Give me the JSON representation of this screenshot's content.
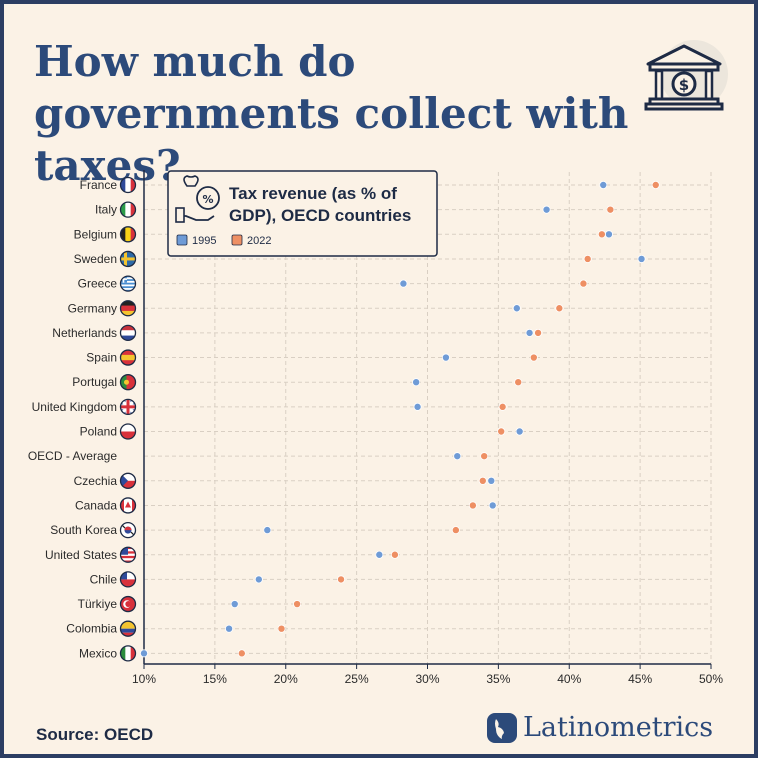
{
  "title": "How much do governments collect with taxes?",
  "source": "Source: OECD",
  "brand": "Latinometrics",
  "colors": {
    "series_1995": "#6f9bd6",
    "series_2022": "#ee8f63",
    "title": "#2c4a7a",
    "background": "#fbf2e6"
  },
  "icons": {
    "header": "bank-building-icon",
    "legend": "money-bag-percent-icon",
    "brand": "latinometrics-logo-icon"
  },
  "chart_data": {
    "type": "scatter",
    "subtype": "dumbbell-dot-plot",
    "title": "Tax revenue (as % of GDP), OECD countries",
    "x_unit": "%",
    "xlim": [
      10,
      50
    ],
    "xticks": [
      "10%",
      "15%",
      "20%",
      "25%",
      "30%",
      "35%",
      "40%",
      "45%",
      "50%"
    ],
    "grid": true,
    "legend_position": "top-left",
    "categories": [
      "France",
      "Italy",
      "Belgium",
      "Sweden",
      "Greece",
      "Germany",
      "Netherlands",
      "Spain",
      "Portugal",
      "United Kingdom",
      "Poland",
      "OECD - Average",
      "Czechia",
      "Canada",
      "South Korea",
      "United States",
      "Chile",
      "Türkiye",
      "Colombia",
      "Mexico"
    ],
    "series": [
      {
        "name": "1995",
        "values": [
          42.4,
          38.4,
          42.8,
          45.1,
          28.3,
          36.3,
          37.2,
          31.3,
          29.2,
          29.3,
          36.5,
          32.1,
          34.5,
          34.6,
          18.7,
          26.6,
          18.1,
          16.4,
          16.0,
          10.0
        ]
      },
      {
        "name": "2022",
        "values": [
          46.1,
          42.9,
          42.3,
          41.3,
          41.0,
          39.3,
          37.8,
          37.5,
          36.4,
          35.3,
          35.2,
          34.0,
          33.9,
          33.2,
          32.0,
          27.7,
          23.9,
          20.8,
          19.7,
          16.9
        ]
      }
    ],
    "flags": [
      {
        "type": "v",
        "colors": [
          "#2f4a9a",
          "#ffffff",
          "#d8313b"
        ]
      },
      {
        "type": "v",
        "colors": [
          "#2c9c49",
          "#ffffff",
          "#d8313b"
        ]
      },
      {
        "type": "v",
        "colors": [
          "#222222",
          "#f7d117",
          "#d8313b"
        ]
      },
      {
        "type": "cross",
        "colors": [
          "#2d6aa8",
          "#f4c430"
        ]
      },
      {
        "type": "stripes",
        "colors": [
          "#4b8ed0",
          "#ffffff"
        ]
      },
      {
        "type": "h",
        "colors": [
          "#222222",
          "#d8313b",
          "#f4c430"
        ]
      },
      {
        "type": "h",
        "colors": [
          "#c8323d",
          "#ffffff",
          "#2f4a9a"
        ]
      },
      {
        "type": "h",
        "colors": [
          "#d8313b",
          "#f4c430",
          "#d8313b"
        ]
      },
      {
        "type": "v2",
        "colors": [
          "#2c8c3d",
          "#d8313b"
        ]
      },
      {
        "type": "uk",
        "colors": [
          "#2f4a9a",
          "#ffffff",
          "#d8313b"
        ]
      },
      {
        "type": "h2",
        "colors": [
          "#ffffff",
          "#d8313b"
        ]
      },
      {
        "type": "none",
        "colors": []
      },
      {
        "type": "cz",
        "colors": [
          "#ffffff",
          "#d8313b",
          "#2f4a9a"
        ]
      },
      {
        "type": "ca",
        "colors": [
          "#d8313b",
          "#ffffff"
        ]
      },
      {
        "type": "kr",
        "colors": [
          "#ffffff",
          "#d8313b",
          "#2f4a9a"
        ]
      },
      {
        "type": "us",
        "colors": [
          "#d8313b",
          "#ffffff",
          "#2f4a9a"
        ]
      },
      {
        "type": "cl",
        "colors": [
          "#2f4a9a",
          "#ffffff",
          "#d8313b"
        ]
      },
      {
        "type": "tr",
        "colors": [
          "#d8313b",
          "#ffffff"
        ]
      },
      {
        "type": "h3",
        "colors": [
          "#f4c430",
          "#2f4a9a",
          "#d8313b"
        ]
      },
      {
        "type": "v",
        "colors": [
          "#2c8c3d",
          "#ffffff",
          "#d8313b"
        ]
      }
    ]
  }
}
